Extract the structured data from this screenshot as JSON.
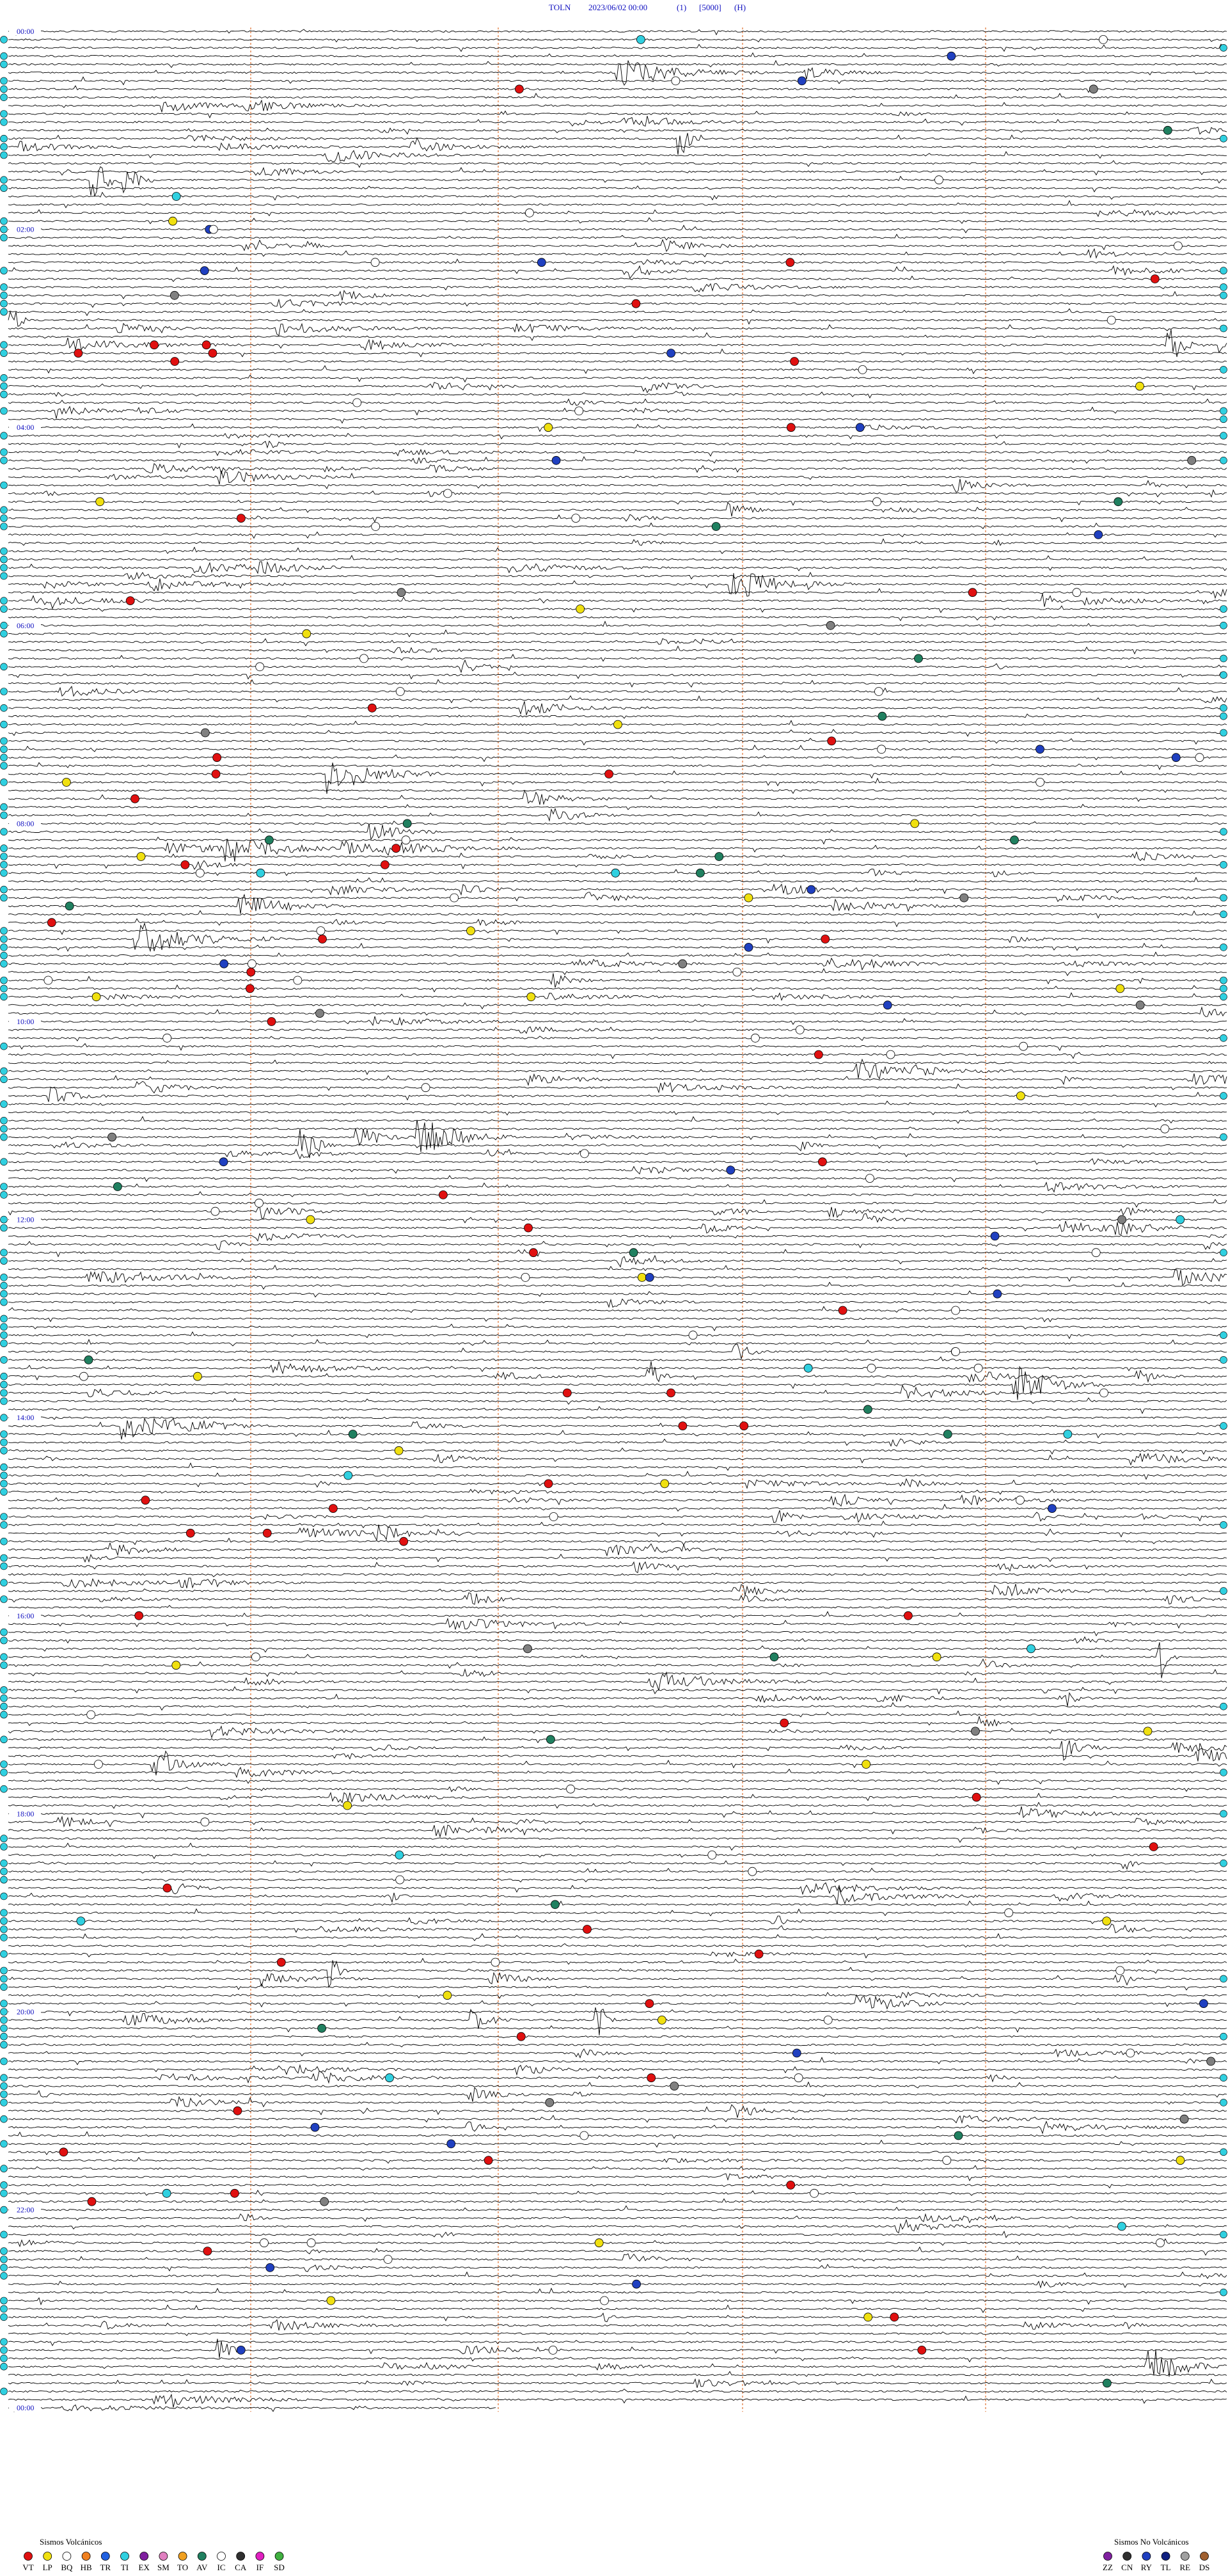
{
  "header": {
    "station": "TOLN",
    "datetime": "2023/06/02 00:00",
    "channel": "(1)",
    "scale": "[5000]",
    "component": "(H)"
  },
  "hour_labels": [
    "00:00",
    "02:00",
    "04:00",
    "06:00",
    "08:00",
    "10:00",
    "12:00",
    "14:00",
    "16:00",
    "18:00",
    "20:00",
    "22:00",
    "00:00"
  ],
  "legend": {
    "volcanic": {
      "title": "Sismos Volcánicos",
      "items": [
        {
          "label": "VT",
          "color": "#e01010"
        },
        {
          "label": "LP",
          "color": "#f0e010"
        },
        {
          "label": "BQ",
          "color": "#ffffff"
        },
        {
          "label": "HB",
          "color": "#f08020"
        },
        {
          "label": "TR",
          "color": "#2060e0"
        },
        {
          "label": "TI",
          "color": "#30d0e0"
        },
        {
          "label": "EX",
          "color": "#8020a0"
        },
        {
          "label": "SM",
          "color": "#e080c0"
        },
        {
          "label": "TO",
          "color": "#f0a020"
        },
        {
          "label": "AV",
          "color": "#208060"
        },
        {
          "label": "IC",
          "color": "#ffffff"
        },
        {
          "label": "CA",
          "color": "#303030"
        },
        {
          "label": "IF",
          "color": "#e020c0"
        },
        {
          "label": "SD",
          "color": "#40b040"
        }
      ]
    },
    "non_volcanic": {
      "title": "Sismos No Volcánicos",
      "items": [
        {
          "label": "ZZ",
          "color": "#8020a0"
        },
        {
          "label": "CN",
          "color": "#303030"
        },
        {
          "label": "RY",
          "color": "#2040c0"
        },
        {
          "label": "TL",
          "color": "#102080"
        },
        {
          "label": "RE",
          "color": "#a0a0a0"
        },
        {
          "label": "DS",
          "color": "#a06030"
        }
      ]
    }
  }
}
